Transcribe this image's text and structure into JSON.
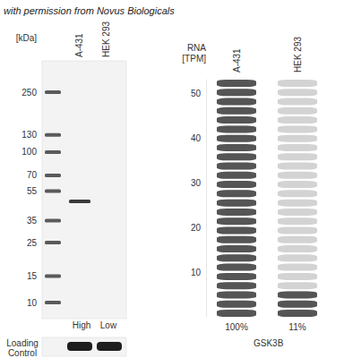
{
  "watermark": "with permission from Novus Biologicals",
  "western_blot": {
    "unit_label": "[kDa]",
    "lanes": [
      "A-431",
      "HEK 293"
    ],
    "ladder_kda": [
      250,
      130,
      100,
      70,
      55,
      35,
      25,
      15,
      10
    ],
    "bands": [
      {
        "lane": "A-431",
        "kda": 47
      }
    ],
    "lane_levels": [
      "High",
      "Low"
    ],
    "loading_control": {
      "label": "Loading Control",
      "lanes": [
        "A-431",
        "HEK 293"
      ]
    }
  },
  "chart_data": {
    "type": "pictorial_bar",
    "title": "GSK3B",
    "y_label": "RNA [TPM]",
    "categories": [
      "A-431",
      "HEK 293"
    ],
    "values": [
      51,
      5.5
    ],
    "percent_labels": [
      "100%",
      "11%"
    ],
    "color": "#555555",
    "ylim": [
      0,
      53
    ],
    "yticks": [
      10,
      20,
      30,
      40,
      50
    ],
    "grid": false
  }
}
